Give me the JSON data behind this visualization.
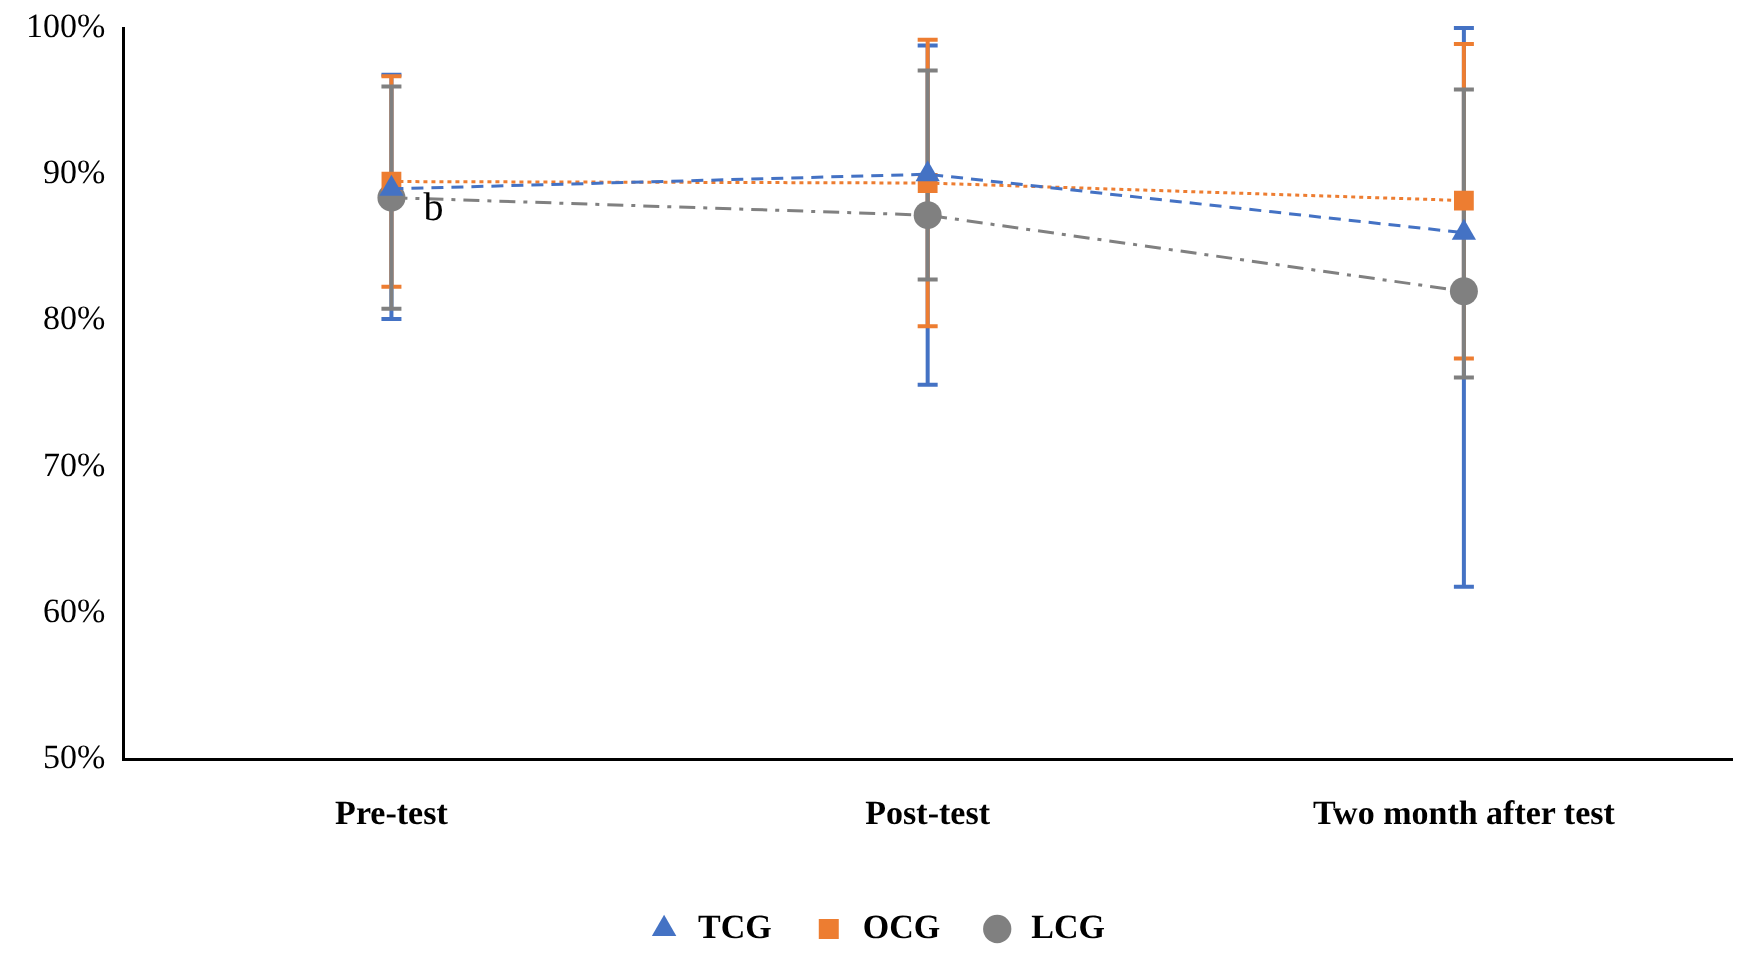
{
  "chart_data": {
    "type": "line",
    "categories": [
      "Pre-test",
      "Post-test",
      "Two month after test"
    ],
    "series": [
      {
        "name": "TCG",
        "color": "#4472c4",
        "values": [
          89.0,
          90.0,
          86.0
        ],
        "marker": "triangle",
        "line_style": "dashed",
        "errors": [
          [
            80.1,
            96.8
          ],
          [
            75.6,
            98.8
          ],
          [
            61.8,
            100
          ]
        ]
      },
      {
        "name": "OCG",
        "color": "#ed7d31",
        "values": [
          89.5,
          89.4,
          88.2
        ],
        "marker": "square",
        "line_style": "dotted",
        "errors": [
          [
            82.3,
            96.7
          ],
          [
            79.6,
            99.2
          ],
          [
            77.4,
            98.9
          ]
        ]
      },
      {
        "name": "LCG",
        "color": "#808080",
        "values": [
          88.4,
          87.2,
          82.0
        ],
        "marker": "circle",
        "line_style": "dashdot",
        "errors": [
          [
            80.8,
            96.0
          ],
          [
            82.8,
            97.1
          ],
          [
            76.1,
            95.8
          ]
        ]
      }
    ],
    "ylim": [
      50,
      100
    ],
    "yticks": [
      {
        "value": 50,
        "label": "50%"
      },
      {
        "value": 60,
        "label": "60%"
      },
      {
        "value": 70,
        "label": "70%"
      },
      {
        "value": 80,
        "label": "80%"
      },
      {
        "value": 90,
        "label": "90%"
      },
      {
        "value": 100,
        "label": "100%"
      }
    ],
    "annotations": [
      {
        "text": "b",
        "x": "Pre-test",
        "y": 88.4
      }
    ],
    "grid": false,
    "legend": "bottom"
  }
}
